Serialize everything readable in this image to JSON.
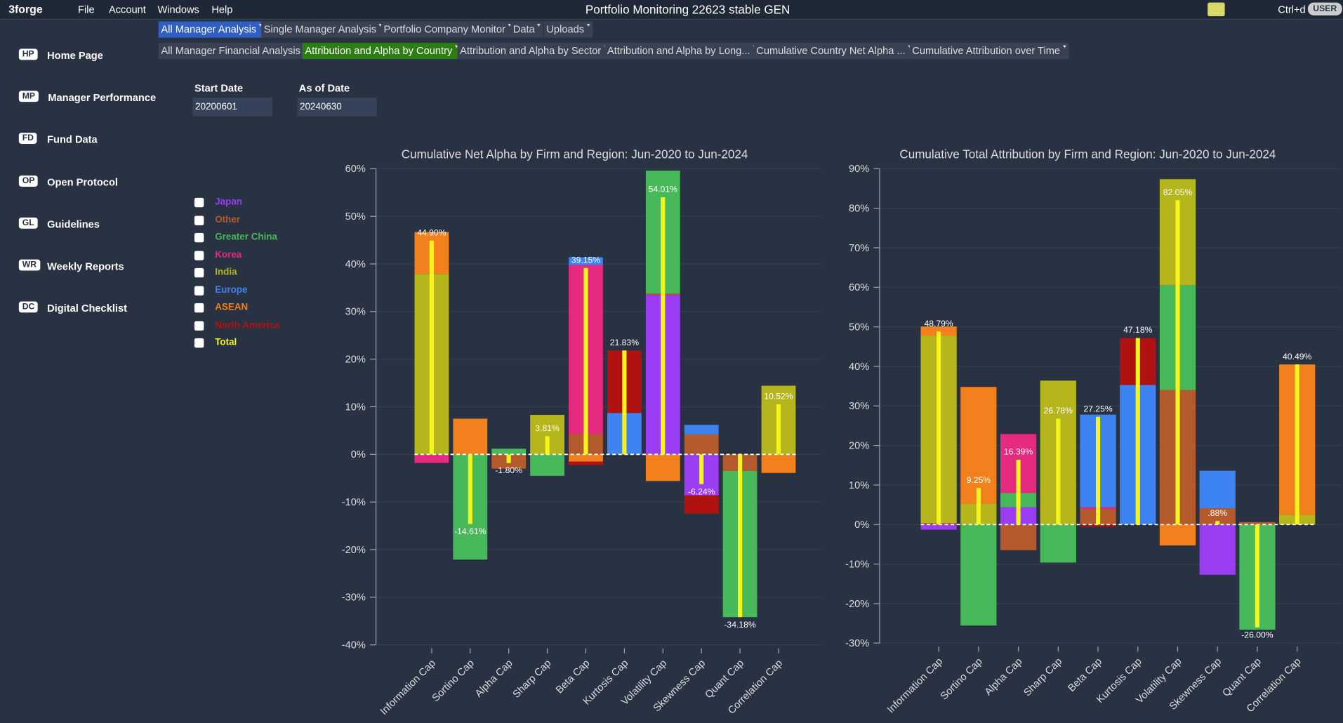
{
  "menu": {
    "logo": "3forge",
    "items": [
      "File",
      "Account",
      "Windows",
      "Help"
    ],
    "title": "Portfolio Monitoring 22623 stable GEN",
    "shortcut": "Ctrl+d",
    "user": "USER"
  },
  "tabs": {
    "row1": [
      "All Manager Analysis",
      "Single Manager Analysis",
      "Portfolio Company Monitor",
      "Data",
      "Uploads"
    ],
    "row1_active": 0,
    "row2": [
      "All Manager Financial Analysis",
      "Attribution and Alpha by Country",
      "Attribution and Alpha by Sector",
      "Attribution and Alpha by Long...",
      "Cumulative Country Net Alpha ...",
      "Cumulative Attribution over Time"
    ],
    "row2_active": 1
  },
  "sidebar": [
    {
      "badge": "HP",
      "label": "Home Page"
    },
    {
      "badge": "MP",
      "label": "Manager Performance"
    },
    {
      "badge": "FD",
      "label": "Fund Data"
    },
    {
      "badge": "OP",
      "label": "Open Protocol"
    },
    {
      "badge": "GL",
      "label": "Guidelines"
    },
    {
      "badge": "WR",
      "label": "Weekly Reports"
    },
    {
      "badge": "DC",
      "label": "Digital Checklist"
    }
  ],
  "filters": [
    {
      "label": "Start Date",
      "value": "20200601"
    },
    {
      "label": "As of Date",
      "value": "20240630"
    }
  ],
  "chart_data": [
    {
      "type": "bar",
      "stacked": true,
      "title": "Cumulative Net Alpha by Firm and Region: Jun-2020 to Jun-2024",
      "categories": [
        "Information Cap",
        "Sortino Cap",
        "Alpha Cap",
        "Sharp Cap",
        "Beta Cap",
        "Kurtosis Cap",
        "Volatility Cap",
        "Skewness Cap",
        "Quant Cap",
        "Correlation Cap"
      ],
      "ylim": [
        -40,
        60
      ],
      "yticks": [
        {
          "value": -40,
          "label": "-40%"
        },
        {
          "value": -30,
          "label": "-30%"
        },
        {
          "value": -20,
          "label": "-20%"
        },
        {
          "value": -10,
          "label": "-10%"
        },
        {
          "value": 0,
          "label": "0%"
        },
        {
          "value": 10,
          "label": "10%"
        },
        {
          "value": 20,
          "label": "20%"
        },
        {
          "value": 30,
          "label": "30%"
        },
        {
          "value": 40,
          "label": "40%"
        },
        {
          "value": 50,
          "label": "50%"
        },
        {
          "value": 60,
          "label": "60%"
        }
      ],
      "series": [
        {
          "name": "Japan",
          "color": "#9b3df2",
          "values": [
            0,
            0,
            0,
            0,
            0,
            0,
            33.5,
            -8.6,
            0,
            0
          ]
        },
        {
          "name": "Other",
          "color": "#b45a2c",
          "values": [
            0,
            0,
            -3.0,
            0,
            4.3,
            0,
            0.3,
            4.2,
            -3.48,
            0
          ]
        },
        {
          "name": "Greater China",
          "color": "#48b95a",
          "values": [
            0,
            -22.1,
            1.2,
            -4.5,
            0,
            0,
            25.8,
            0,
            -30.7,
            0
          ]
        },
        {
          "name": "Korea",
          "color": "#e62a80",
          "values": [
            -1.8,
            0,
            0,
            0,
            35.5,
            0,
            0,
            0,
            0,
            0
          ]
        },
        {
          "name": "India",
          "color": "#b5b51c",
          "values": [
            37.9,
            0,
            0,
            8.3,
            0,
            0,
            0,
            0,
            0,
            14.42
          ]
        },
        {
          "name": "Europe",
          "color": "#3d84f2",
          "values": [
            0,
            0,
            0,
            0,
            1.6,
            8.7,
            0,
            2.0,
            0,
            0
          ]
        },
        {
          "name": "ASEAN",
          "color": "#f2801c",
          "values": [
            8.8,
            7.5,
            0,
            0,
            -1.5,
            0,
            -5.59,
            0,
            0,
            -3.9
          ]
        },
        {
          "name": "North America",
          "color": "#b01212",
          "values": [
            0,
            0,
            0,
            0,
            -0.75,
            13.13,
            0,
            -3.84,
            0,
            0
          ]
        },
        {
          "name": "Total",
          "color": "#f5f51e",
          "stack": false,
          "values": [
            44.9,
            -14.61,
            -1.8,
            3.81,
            39.15,
            21.83,
            54.01,
            -6.24,
            -34.18,
            10.52
          ],
          "value_labels": [
            "44.90%",
            "-14.61%",
            "-1.80%",
            "3.81%",
            "39.15%",
            "21.83%",
            "54.01%",
            "-6.24%",
            "-34.18%",
            "10.52%"
          ]
        }
      ]
    },
    {
      "type": "bar",
      "stacked": true,
      "title": "Cumulative Total Attribution by Firm and Region: Jun-2020 to Jun-2024",
      "categories": [
        "Information Cap",
        "Sortino Cap",
        "Alpha Cap",
        "Sharp Cap",
        "Beta Cap",
        "Kurtosis Cap",
        "Volatility Cap",
        "Skewness Cap",
        "Quant Cap",
        "Correlation Cap"
      ],
      "ylim": [
        -30,
        90
      ],
      "yticks": [
        {
          "value": -30,
          "label": "-30%"
        },
        {
          "value": -20,
          "label": "-20%"
        },
        {
          "value": -10,
          "label": "-10%"
        },
        {
          "value": 0,
          "label": "0%"
        },
        {
          "value": 10,
          "label": "10%"
        },
        {
          "value": 20,
          "label": "20%"
        },
        {
          "value": 30,
          "label": "30%"
        },
        {
          "value": 40,
          "label": "40%"
        },
        {
          "value": 50,
          "label": "50%"
        },
        {
          "value": 60,
          "label": "60%"
        },
        {
          "value": 70,
          "label": "70%"
        },
        {
          "value": 80,
          "label": "80%"
        },
        {
          "value": 90,
          "label": "90%"
        }
      ],
      "series": [
        {
          "name": "Japan",
          "color": "#9b3df2",
          "values": [
            -1.3,
            0,
            4.4,
            0,
            0,
            0,
            0,
            -12.72,
            0,
            0
          ]
        },
        {
          "name": "Other",
          "color": "#b45a2c",
          "values": [
            0.4,
            0,
            -6.5,
            0,
            3.9,
            0,
            34.05,
            4.1,
            0.6,
            0
          ]
        },
        {
          "name": "Greater China",
          "color": "#48b95a",
          "values": [
            0,
            -25.55,
            3.6,
            -9.62,
            0,
            0,
            26.5,
            0,
            -26.6,
            0
          ]
        },
        {
          "name": "Korea",
          "color": "#e62a80",
          "values": [
            0,
            0,
            14.89,
            0,
            0.5,
            0,
            0,
            0,
            0,
            0
          ]
        },
        {
          "name": "India",
          "color": "#b5b51c",
          "values": [
            47.39,
            5.3,
            0,
            36.4,
            0,
            0,
            26.8,
            0,
            0,
            2.49
          ]
        },
        {
          "name": "Europe",
          "color": "#3d84f2",
          "values": [
            0,
            0,
            0,
            0,
            23.4,
            35.3,
            0,
            9.5,
            0,
            0
          ]
        },
        {
          "name": "ASEAN",
          "color": "#f2801c",
          "values": [
            2.3,
            29.5,
            0,
            0,
            0,
            0,
            -5.3,
            0,
            0,
            38
          ]
        },
        {
          "name": "North America",
          "color": "#b01212",
          "values": [
            0,
            0,
            0,
            0,
            -0.55,
            11.88,
            0,
            0,
            0,
            0
          ]
        },
        {
          "name": "Total",
          "color": "#f5f51e",
          "stack": false,
          "values": [
            48.79,
            9.25,
            16.39,
            26.78,
            27.25,
            47.18,
            82.05,
            0.88,
            -26.0,
            40.49
          ],
          "value_labels": [
            "48.79%",
            "9.25%",
            "16.39%",
            "26.78%",
            "27.25%",
            "47.18%",
            "82.05%",
            ".88%",
            "-26.00%",
            "40.49%"
          ]
        }
      ]
    }
  ]
}
